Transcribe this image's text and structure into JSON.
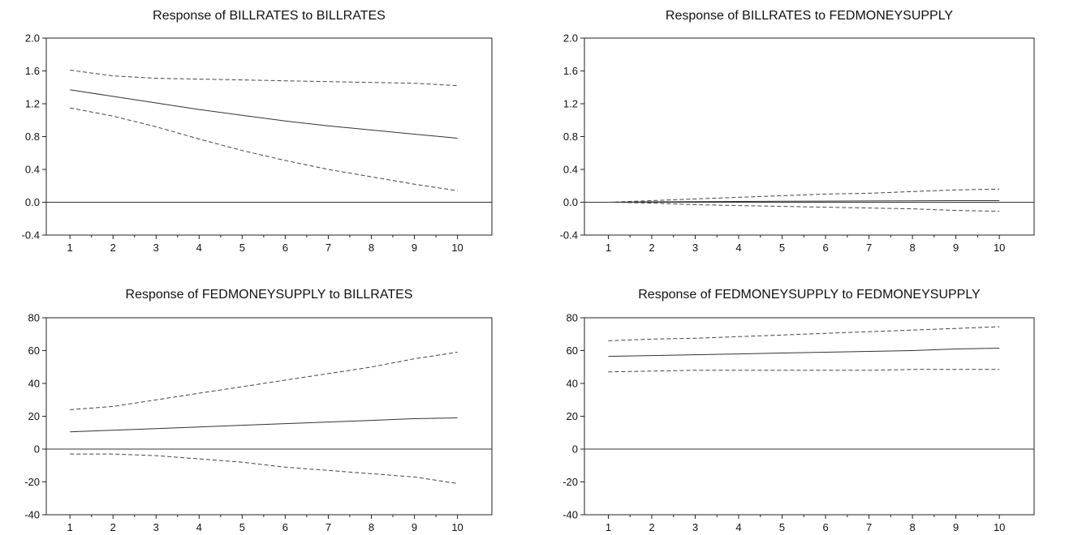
{
  "chart_data": [
    {
      "type": "line",
      "title": "Response of BILLRATES to BILLRATES",
      "x": [
        1,
        2,
        3,
        4,
        5,
        6,
        7,
        8,
        9,
        10
      ],
      "ylim": [
        -0.4,
        2.0
      ],
      "yticks": [
        "2.0",
        "1.6",
        "1.2",
        "0.8",
        "0.4",
        "0.0",
        "-0.4"
      ],
      "ytick_values": [
        2.0,
        1.6,
        1.2,
        0.8,
        0.4,
        0.0,
        -0.4
      ],
      "zero_line": 0,
      "series": [
        {
          "role": "upper",
          "values": [
            1.61,
            1.54,
            1.51,
            1.5,
            1.49,
            1.48,
            1.47,
            1.46,
            1.45,
            1.42
          ]
        },
        {
          "role": "response",
          "values": [
            1.37,
            1.29,
            1.21,
            1.13,
            1.06,
            0.99,
            0.93,
            0.88,
            0.83,
            0.78
          ]
        },
        {
          "role": "lower",
          "values": [
            1.15,
            1.05,
            0.92,
            0.77,
            0.63,
            0.51,
            0.4,
            0.31,
            0.22,
            0.14
          ]
        }
      ]
    },
    {
      "type": "line",
      "title": "Response of BILLRATES to FEDMONEYSUPPLY",
      "x": [
        1,
        2,
        3,
        4,
        5,
        6,
        7,
        8,
        9,
        10
      ],
      "ylim": [
        -0.4,
        2.0
      ],
      "yticks": [
        "2.0",
        "1.6",
        "1.2",
        "0.8",
        "0.4",
        "0.0",
        "-0.4"
      ],
      "ytick_values": [
        2.0,
        1.6,
        1.2,
        0.8,
        0.4,
        0.0,
        -0.4
      ],
      "zero_line": 0,
      "series": [
        {
          "role": "upper",
          "values": [
            0.0,
            0.02,
            0.04,
            0.06,
            0.08,
            0.1,
            0.11,
            0.13,
            0.15,
            0.16
          ]
        },
        {
          "role": "response",
          "values": [
            0.0,
            0.005,
            0.008,
            0.01,
            0.012,
            0.014,
            0.016,
            0.018,
            0.02,
            0.02
          ]
        },
        {
          "role": "lower",
          "values": [
            0.0,
            -0.01,
            -0.03,
            -0.04,
            -0.05,
            -0.06,
            -0.07,
            -0.08,
            -0.1,
            -0.11
          ]
        }
      ]
    },
    {
      "type": "line",
      "title": "Response of FEDMONEYSUPPLY to BILLRATES",
      "x": [
        1,
        2,
        3,
        4,
        5,
        6,
        7,
        8,
        9,
        10
      ],
      "ylim": [
        -40,
        80
      ],
      "yticks": [
        "80",
        "60",
        "40",
        "20",
        "0",
        "-20",
        "-40"
      ],
      "ytick_values": [
        80,
        60,
        40,
        20,
        0,
        -20,
        -40
      ],
      "zero_line": 0,
      "series": [
        {
          "role": "upper",
          "values": [
            24,
            26,
            30,
            34,
            38,
            42,
            46,
            50,
            55,
            59
          ]
        },
        {
          "role": "response",
          "values": [
            10.5,
            11.5,
            12.5,
            13.5,
            14.5,
            15.5,
            16.5,
            17.5,
            18.5,
            19
          ]
        },
        {
          "role": "lower",
          "values": [
            -3,
            -3,
            -4,
            -6,
            -8,
            -11,
            -13,
            -15,
            -17,
            -21
          ]
        }
      ]
    },
    {
      "type": "line",
      "title": "Response of FEDMONEYSUPPLY to FEDMONEYSUPPLY",
      "x": [
        1,
        2,
        3,
        4,
        5,
        6,
        7,
        8,
        9,
        10
      ],
      "ylim": [
        -40,
        80
      ],
      "yticks": [
        "80",
        "60",
        "40",
        "20",
        "0",
        "-20",
        "-40"
      ],
      "ytick_values": [
        80,
        60,
        40,
        20,
        0,
        -20,
        -40
      ],
      "zero_line": 0,
      "series": [
        {
          "role": "upper",
          "values": [
            66,
            67,
            67.5,
            68.5,
            69.5,
            70.5,
            71.5,
            72.5,
            73.5,
            74.5
          ]
        },
        {
          "role": "response",
          "values": [
            56.5,
            57,
            57.5,
            58,
            58.5,
            59,
            59.5,
            60,
            61,
            61.5
          ]
        },
        {
          "role": "lower",
          "values": [
            47,
            47.5,
            48,
            48,
            48,
            48,
            48,
            48.5,
            48.5,
            48.5
          ]
        }
      ]
    }
  ]
}
